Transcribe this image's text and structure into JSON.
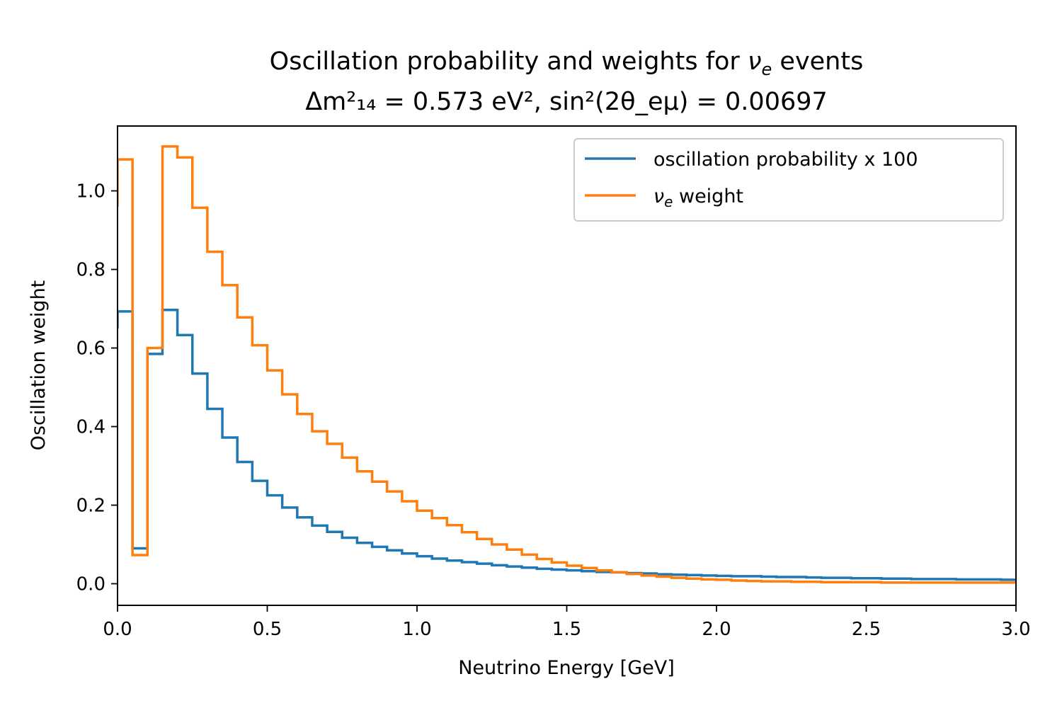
{
  "chart_data": {
    "type": "line",
    "drawstyle": "steps",
    "title_line1_prefix": "Oscillation probability and weights for ",
    "title_line1_symbol": "ν",
    "title_line1_symbol_sub": "e",
    "title_line1_suffix": " events",
    "title_line2": "Δm²₁₄ = 0.573 eV², sin²(2θ_eμ) = 0.00697",
    "xlabel": "Neutrino Energy [GeV]",
    "ylabel": "Oscillation weight",
    "xlim": [
      0.0,
      3.0
    ],
    "ylim": [
      -0.055,
      1.165
    ],
    "xticks": [
      0.0,
      0.5,
      1.0,
      1.5,
      2.0,
      2.5,
      3.0
    ],
    "xtick_labels": [
      "0.0",
      "0.5",
      "1.0",
      "1.5",
      "2.0",
      "2.5",
      "3.0"
    ],
    "yticks": [
      0.0,
      0.2,
      0.4,
      0.6,
      0.8,
      1.0
    ],
    "ytick_labels": [
      "0.0",
      "0.2",
      "0.4",
      "0.6",
      "0.8",
      "1.0"
    ],
    "grid": false,
    "legend_position": "top-right",
    "bin_edges": [
      0.0,
      0.05,
      0.1,
      0.15,
      0.2,
      0.25,
      0.3,
      0.35,
      0.4,
      0.45,
      0.5,
      0.55,
      0.6,
      0.65,
      0.7,
      0.75,
      0.8,
      0.85,
      0.9,
      0.95,
      1.0,
      1.05,
      1.1,
      1.15,
      1.2,
      1.25,
      1.3,
      1.35,
      1.4,
      1.45,
      1.5,
      1.55,
      1.6,
      1.65,
      1.7,
      1.75,
      1.8,
      1.85,
      1.9,
      1.95,
      2.0,
      2.05,
      2.1,
      2.15,
      2.2,
      2.25,
      2.3,
      2.35,
      2.4,
      2.45,
      2.5,
      2.55,
      2.6,
      2.65,
      2.7,
      2.75,
      2.8,
      2.85,
      2.9,
      2.95,
      3.0
    ],
    "series": [
      {
        "name": "oscillation probability x 100",
        "color": "#1f77b4",
        "start_value": 0.65,
        "values": [
          0.693,
          0.09,
          0.585,
          0.697,
          0.633,
          0.535,
          0.445,
          0.372,
          0.31,
          0.262,
          0.225,
          0.194,
          0.169,
          0.148,
          0.132,
          0.117,
          0.104,
          0.094,
          0.085,
          0.077,
          0.07,
          0.064,
          0.059,
          0.055,
          0.051,
          0.047,
          0.044,
          0.041,
          0.038,
          0.036,
          0.034,
          0.032,
          0.03,
          0.029,
          0.027,
          0.026,
          0.024,
          0.023,
          0.022,
          0.021,
          0.02,
          0.019,
          0.019,
          0.018,
          0.017,
          0.017,
          0.016,
          0.015,
          0.015,
          0.014,
          0.014,
          0.013,
          0.013,
          0.012,
          0.012,
          0.012,
          0.011,
          0.011,
          0.011,
          0.01
        ]
      },
      {
        "name": "ν_e weight",
        "label_symbol": "ν",
        "label_sub": "e",
        "label_suffix": " weight",
        "color": "#ff7f0e",
        "start_value": 0.96,
        "values": [
          1.08,
          0.073,
          0.6,
          1.113,
          1.085,
          0.957,
          0.845,
          0.76,
          0.678,
          0.607,
          0.543,
          0.482,
          0.432,
          0.388,
          0.356,
          0.321,
          0.286,
          0.26,
          0.235,
          0.21,
          0.186,
          0.167,
          0.149,
          0.131,
          0.114,
          0.1,
          0.087,
          0.074,
          0.063,
          0.054,
          0.046,
          0.04,
          0.034,
          0.029,
          0.025,
          0.021,
          0.018,
          0.015,
          0.013,
          0.011,
          0.01,
          0.008,
          0.007,
          0.006,
          0.006,
          0.005,
          0.005,
          0.004,
          0.004,
          0.004,
          0.004,
          0.003,
          0.003,
          0.003,
          0.003,
          0.003,
          0.003,
          0.003,
          0.003,
          0.003
        ]
      }
    ]
  }
}
